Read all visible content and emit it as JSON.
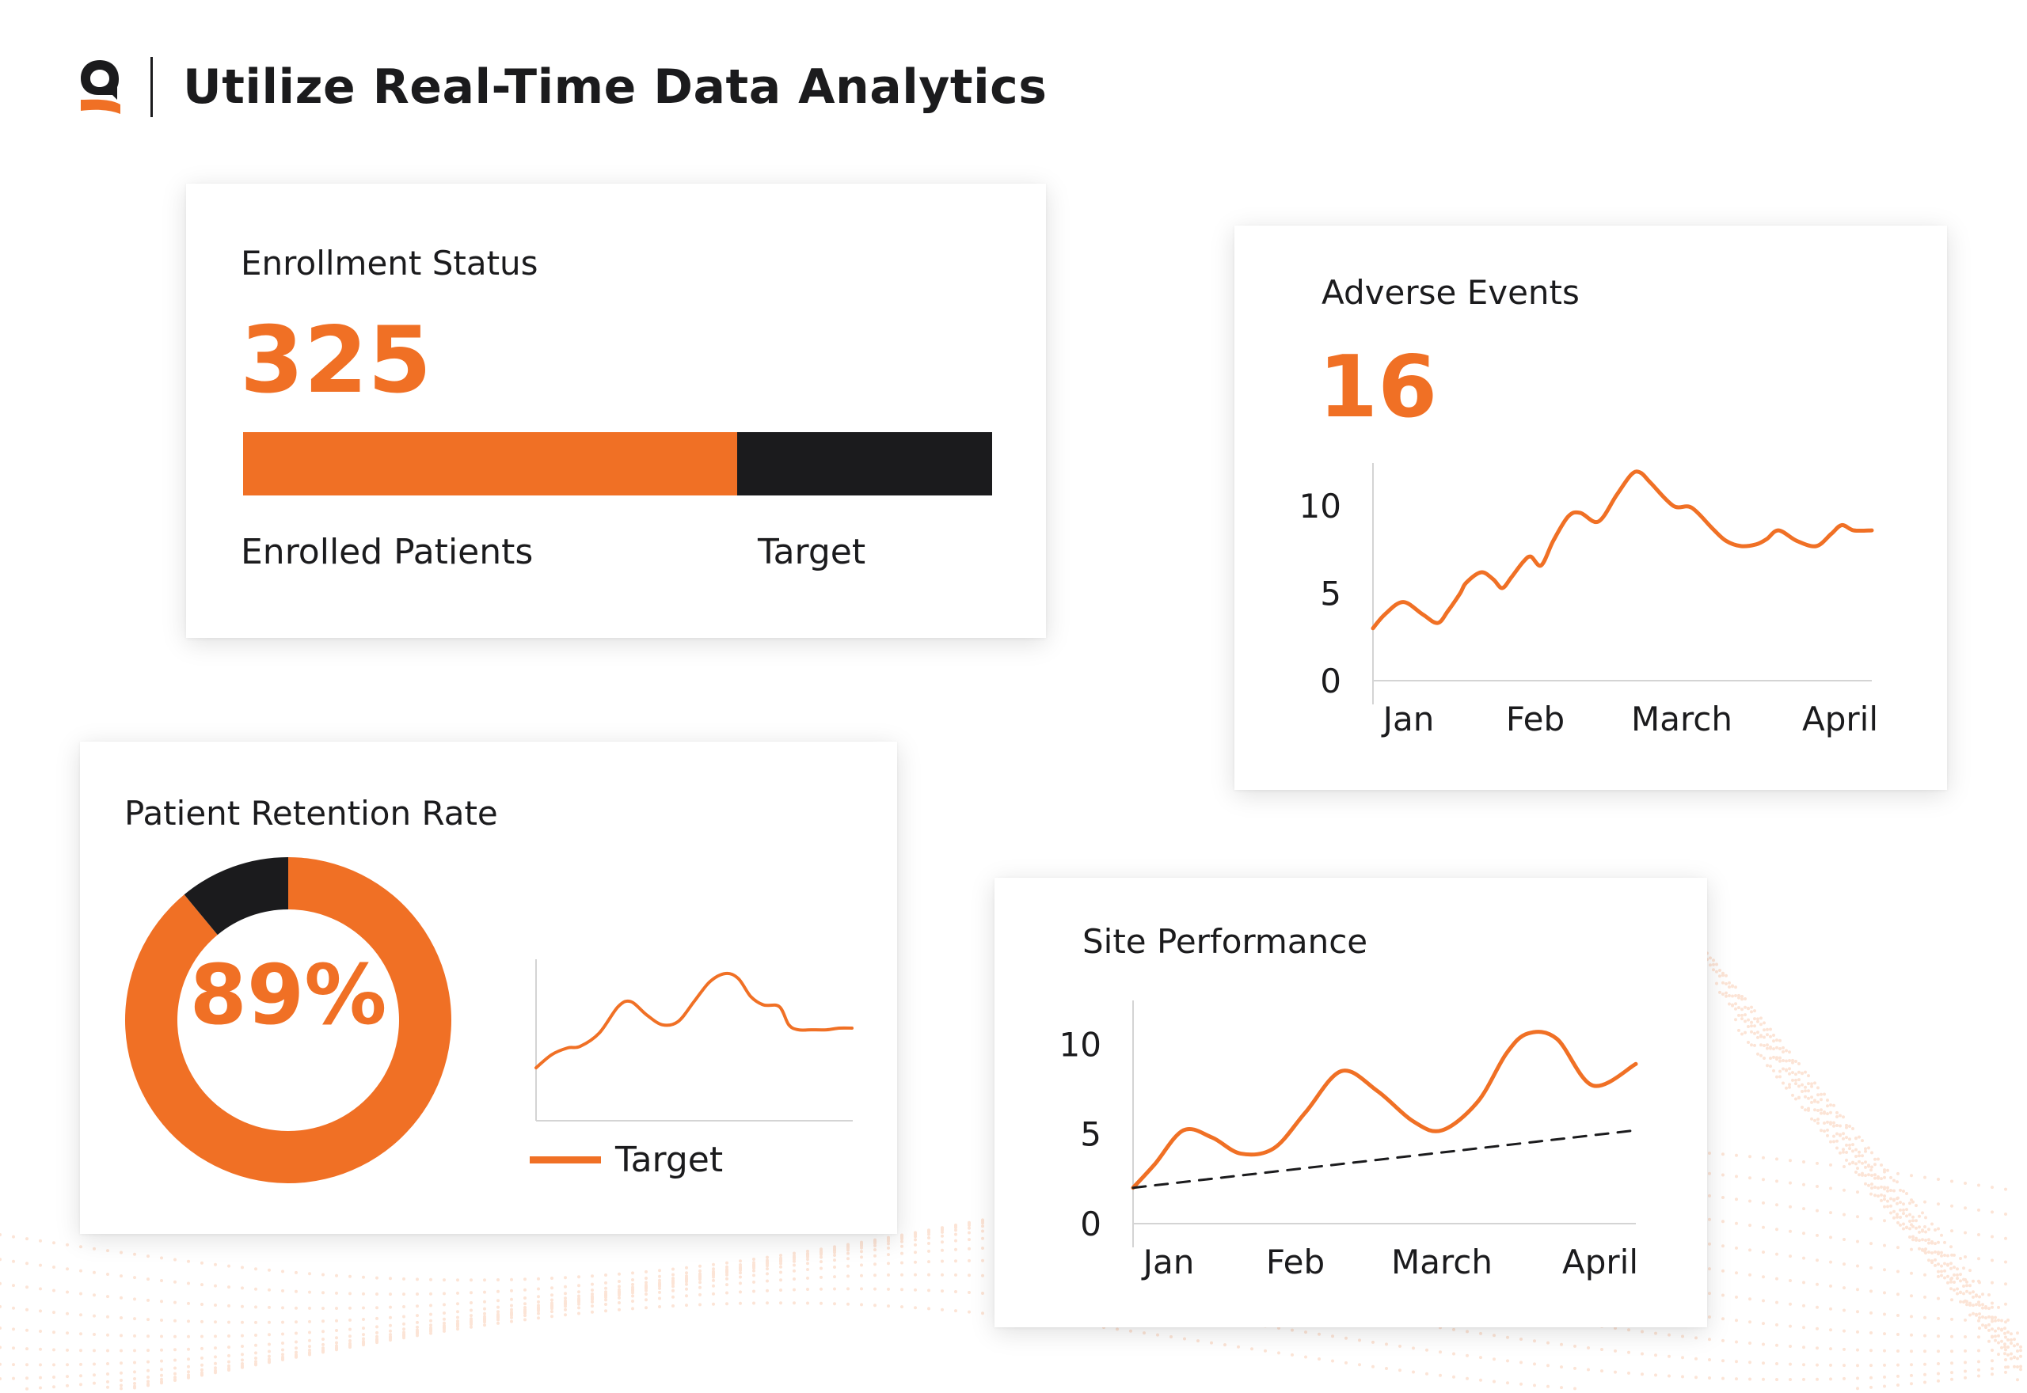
{
  "header": {
    "title": "Utilize Real-Time Data Analytics",
    "logo_icon": "brand-q-logo-icon",
    "colors": {
      "accent": "#f07025",
      "dark": "#1b1b1d"
    }
  },
  "enrollment": {
    "title": "Enrollment Status",
    "value": "325",
    "enrolled_fraction": 0.66,
    "enrolled_label": "Enrolled Patients",
    "target_label": "Target"
  },
  "adverse_events": {
    "title": "Adverse Events",
    "value": "16"
  },
  "retention": {
    "title": "Patient Retention Rate",
    "value": "89%",
    "legend_label": "Target"
  },
  "site_performance": {
    "title": "Site Performance"
  },
  "chart_data": [
    {
      "type": "bar",
      "id": "enrollment-progress",
      "categories": [
        "Enrolled Patients",
        "Target"
      ],
      "values": [
        66,
        34
      ],
      "stacked": true
    },
    {
      "type": "line",
      "id": "adverse-events",
      "categories": [
        "Jan",
        "Feb",
        "March",
        "April"
      ],
      "yticks": [
        "0",
        "5",
        "10"
      ],
      "ylim": [
        0,
        12
      ],
      "grid": false,
      "series": [
        {
          "color": "#f07025",
          "x": [
            0,
            0.08,
            0.2,
            0.33,
            0.43,
            0.5,
            0.58,
            0.62,
            0.72,
            0.8,
            0.86,
            0.92,
            1.0,
            1.05,
            1.12,
            1.2,
            1.3,
            1.38,
            1.5,
            1.62,
            1.72,
            1.78,
            1.85,
            2.0,
            2.12,
            2.26,
            2.35,
            2.45,
            2.55,
            2.62,
            2.7,
            2.82,
            2.95,
            3.05,
            3.12,
            3.2,
            3.32
          ],
          "y": [
            3.0,
            3.8,
            4.5,
            3.8,
            3.3,
            4.0,
            5.0,
            5.6,
            6.2,
            5.8,
            5.3,
            5.9,
            6.8,
            7.1,
            6.6,
            8.0,
            9.4,
            9.6,
            9.1,
            10.6,
            11.8,
            11.9,
            11.3,
            10.0,
            9.9,
            8.7,
            8.0,
            7.7,
            7.8,
            8.1,
            8.6,
            8.0,
            7.7,
            8.4,
            8.9,
            8.6,
            8.6
          ]
        }
      ]
    },
    {
      "type": "pie",
      "id": "retention-donut",
      "values": [
        89,
        11
      ],
      "colors": [
        "#f07025",
        "#1b1b1d"
      ]
    },
    {
      "type": "line",
      "id": "retention-trend",
      "legend": "bottom",
      "series": [
        {
          "name": "Target",
          "color": "#f07025",
          "x": [
            0,
            0.05,
            0.1,
            0.14,
            0.2,
            0.26,
            0.3,
            0.35,
            0.4,
            0.45,
            0.5,
            0.55,
            0.6,
            0.64,
            0.68,
            0.72,
            0.77,
            0.8,
            0.83,
            0.87,
            0.92,
            0.96,
            1.0
          ],
          "y": [
            3.2,
            4.0,
            4.4,
            4.5,
            5.3,
            6.9,
            7.2,
            6.4,
            5.8,
            6.0,
            7.2,
            8.4,
            8.9,
            8.6,
            7.5,
            7.0,
            6.9,
            5.8,
            5.5,
            5.5,
            5.5,
            5.6,
            5.6
          ]
        }
      ]
    },
    {
      "type": "line",
      "id": "site-performance",
      "categories": [
        "Jan",
        "Feb",
        "March",
        "April"
      ],
      "yticks": [
        "0",
        "5",
        "10"
      ],
      "ylim": [
        0,
        12
      ],
      "grid": false,
      "series": [
        {
          "color": "#f07025",
          "x": [
            0,
            0.15,
            0.35,
            0.55,
            0.75,
            0.98,
            1.2,
            1.45,
            1.7,
            1.95,
            2.15,
            2.4,
            2.6,
            2.75,
            2.95,
            3.2,
            3.5
          ],
          "y": [
            2.0,
            3.3,
            5.2,
            4.8,
            3.9,
            4.2,
            6.2,
            8.5,
            7.4,
            5.7,
            5.2,
            6.8,
            9.5,
            10.6,
            10.3,
            7.7,
            8.9
          ]
        },
        {
          "color": "#1b1b1d",
          "dashed": true,
          "x": [
            0,
            3.5
          ],
          "y": [
            2.0,
            5.2
          ]
        }
      ]
    }
  ]
}
